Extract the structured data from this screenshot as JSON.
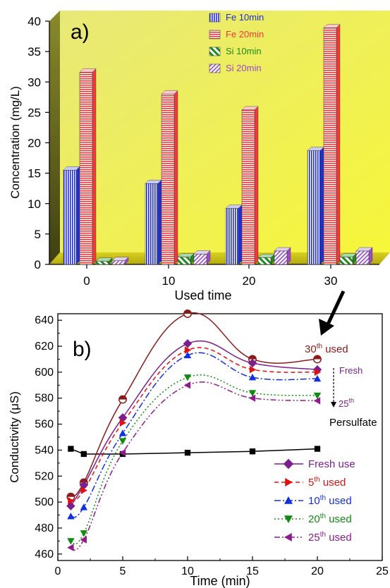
{
  "chart_data": [
    {
      "panel_label": "a)",
      "type": "bar",
      "xlabel": "Used time",
      "ylabel": "Concentration (mg/L)",
      "ylim": [
        0,
        40
      ],
      "yticks": [
        "0",
        "5",
        "10",
        "15",
        "20",
        "25",
        "30",
        "35",
        "40"
      ],
      "categories": [
        "0",
        "10",
        "20",
        "30"
      ],
      "legend_position": "top-right",
      "series": [
        {
          "name": "Fe 10min",
          "color": "#1f2fd0",
          "pattern": "vertical-stripes",
          "values": [
            15.5,
            13.3,
            9.2,
            18.7
          ]
        },
        {
          "name": "Fe 20min",
          "color": "#f03a3a",
          "pattern": "horizontal-stripes",
          "values": [
            31.6,
            28.0,
            25.4,
            38.9
          ]
        },
        {
          "name": "Si 10min",
          "color": "#1e8a1e",
          "pattern": "diagonal-stripes",
          "values": [
            0.5,
            1.2,
            1.1,
            1.2
          ]
        },
        {
          "name": "Si 20min",
          "color": "#9a4bc8",
          "pattern": "diagonal-stripes",
          "values": [
            0.6,
            1.7,
            2.2,
            2.2
          ]
        }
      ]
    },
    {
      "panel_label": "b)",
      "type": "line",
      "xlabel": "Time (min)",
      "ylabel": "Conductivity (μS)",
      "xlim": [
        0,
        25
      ],
      "ylim": [
        455,
        645
      ],
      "xticks": [
        "0",
        "5",
        "10",
        "15",
        "20",
        "25"
      ],
      "yticks": [
        "460",
        "480",
        "500",
        "520",
        "540",
        "560",
        "580",
        "600",
        "620",
        "640"
      ],
      "legend_position": "bottom-right",
      "series": [
        {
          "name": "Persulfate",
          "color": "#000000",
          "marker": "square",
          "line": "solid",
          "x": [
            1,
            2,
            5,
            10,
            15,
            20
          ],
          "y": [
            541,
            537,
            537,
            538,
            539,
            541
          ]
        },
        {
          "name": "30th used",
          "color": "#8b1a1a",
          "marker": "circle-half",
          "line": "solid",
          "x": [
            1,
            2,
            5,
            10,
            15,
            20
          ],
          "y": [
            504,
            515,
            579,
            645,
            610,
            610
          ]
        },
        {
          "name": "Fresh use",
          "color": "#7b1f8f",
          "marker": "diamond",
          "line": "solid",
          "x": [
            1,
            2,
            5,
            10,
            15,
            20
          ],
          "y": [
            497,
            513,
            565,
            622,
            607,
            602
          ]
        },
        {
          "name": "5th used",
          "color": "#e01010",
          "marker": "triangle-right",
          "line": "dashed",
          "x": [
            1,
            2,
            5,
            10,
            15,
            20
          ],
          "y": [
            501,
            509,
            561,
            617,
            602,
            600
          ]
        },
        {
          "name": "10th used",
          "color": "#1030e0",
          "marker": "triangle-up",
          "line": "dashdot",
          "x": [
            1,
            2,
            5,
            10,
            15,
            20
          ],
          "y": [
            489,
            496,
            553,
            613,
            596,
            595
          ]
        },
        {
          "name": "20th used",
          "color": "#118a11",
          "marker": "triangle-down",
          "line": "dotted",
          "x": [
            1,
            2,
            5,
            10,
            15,
            20
          ],
          "y": [
            470,
            476,
            547,
            596,
            584,
            582
          ]
        },
        {
          "name": "25th used",
          "color": "#8e1a8e",
          "marker": "triangle-left",
          "line": "dashdotdot",
          "x": [
            1,
            2,
            5,
            10,
            15,
            20
          ],
          "y": [
            465,
            471,
            538,
            590,
            580,
            578
          ]
        }
      ],
      "annotations": {
        "used30": {
          "main": "30",
          "sup": "th",
          "rest": " used",
          "color": "#8b1a1a"
        },
        "fresh": {
          "text": "Fresh",
          "color": "#7b1f8f"
        },
        "used25": {
          "main": "25",
          "sup": "th",
          "color": "#7b1f8f"
        },
        "persulfate": {
          "text": "Persulfate",
          "color": "#000000"
        }
      }
    }
  ]
}
